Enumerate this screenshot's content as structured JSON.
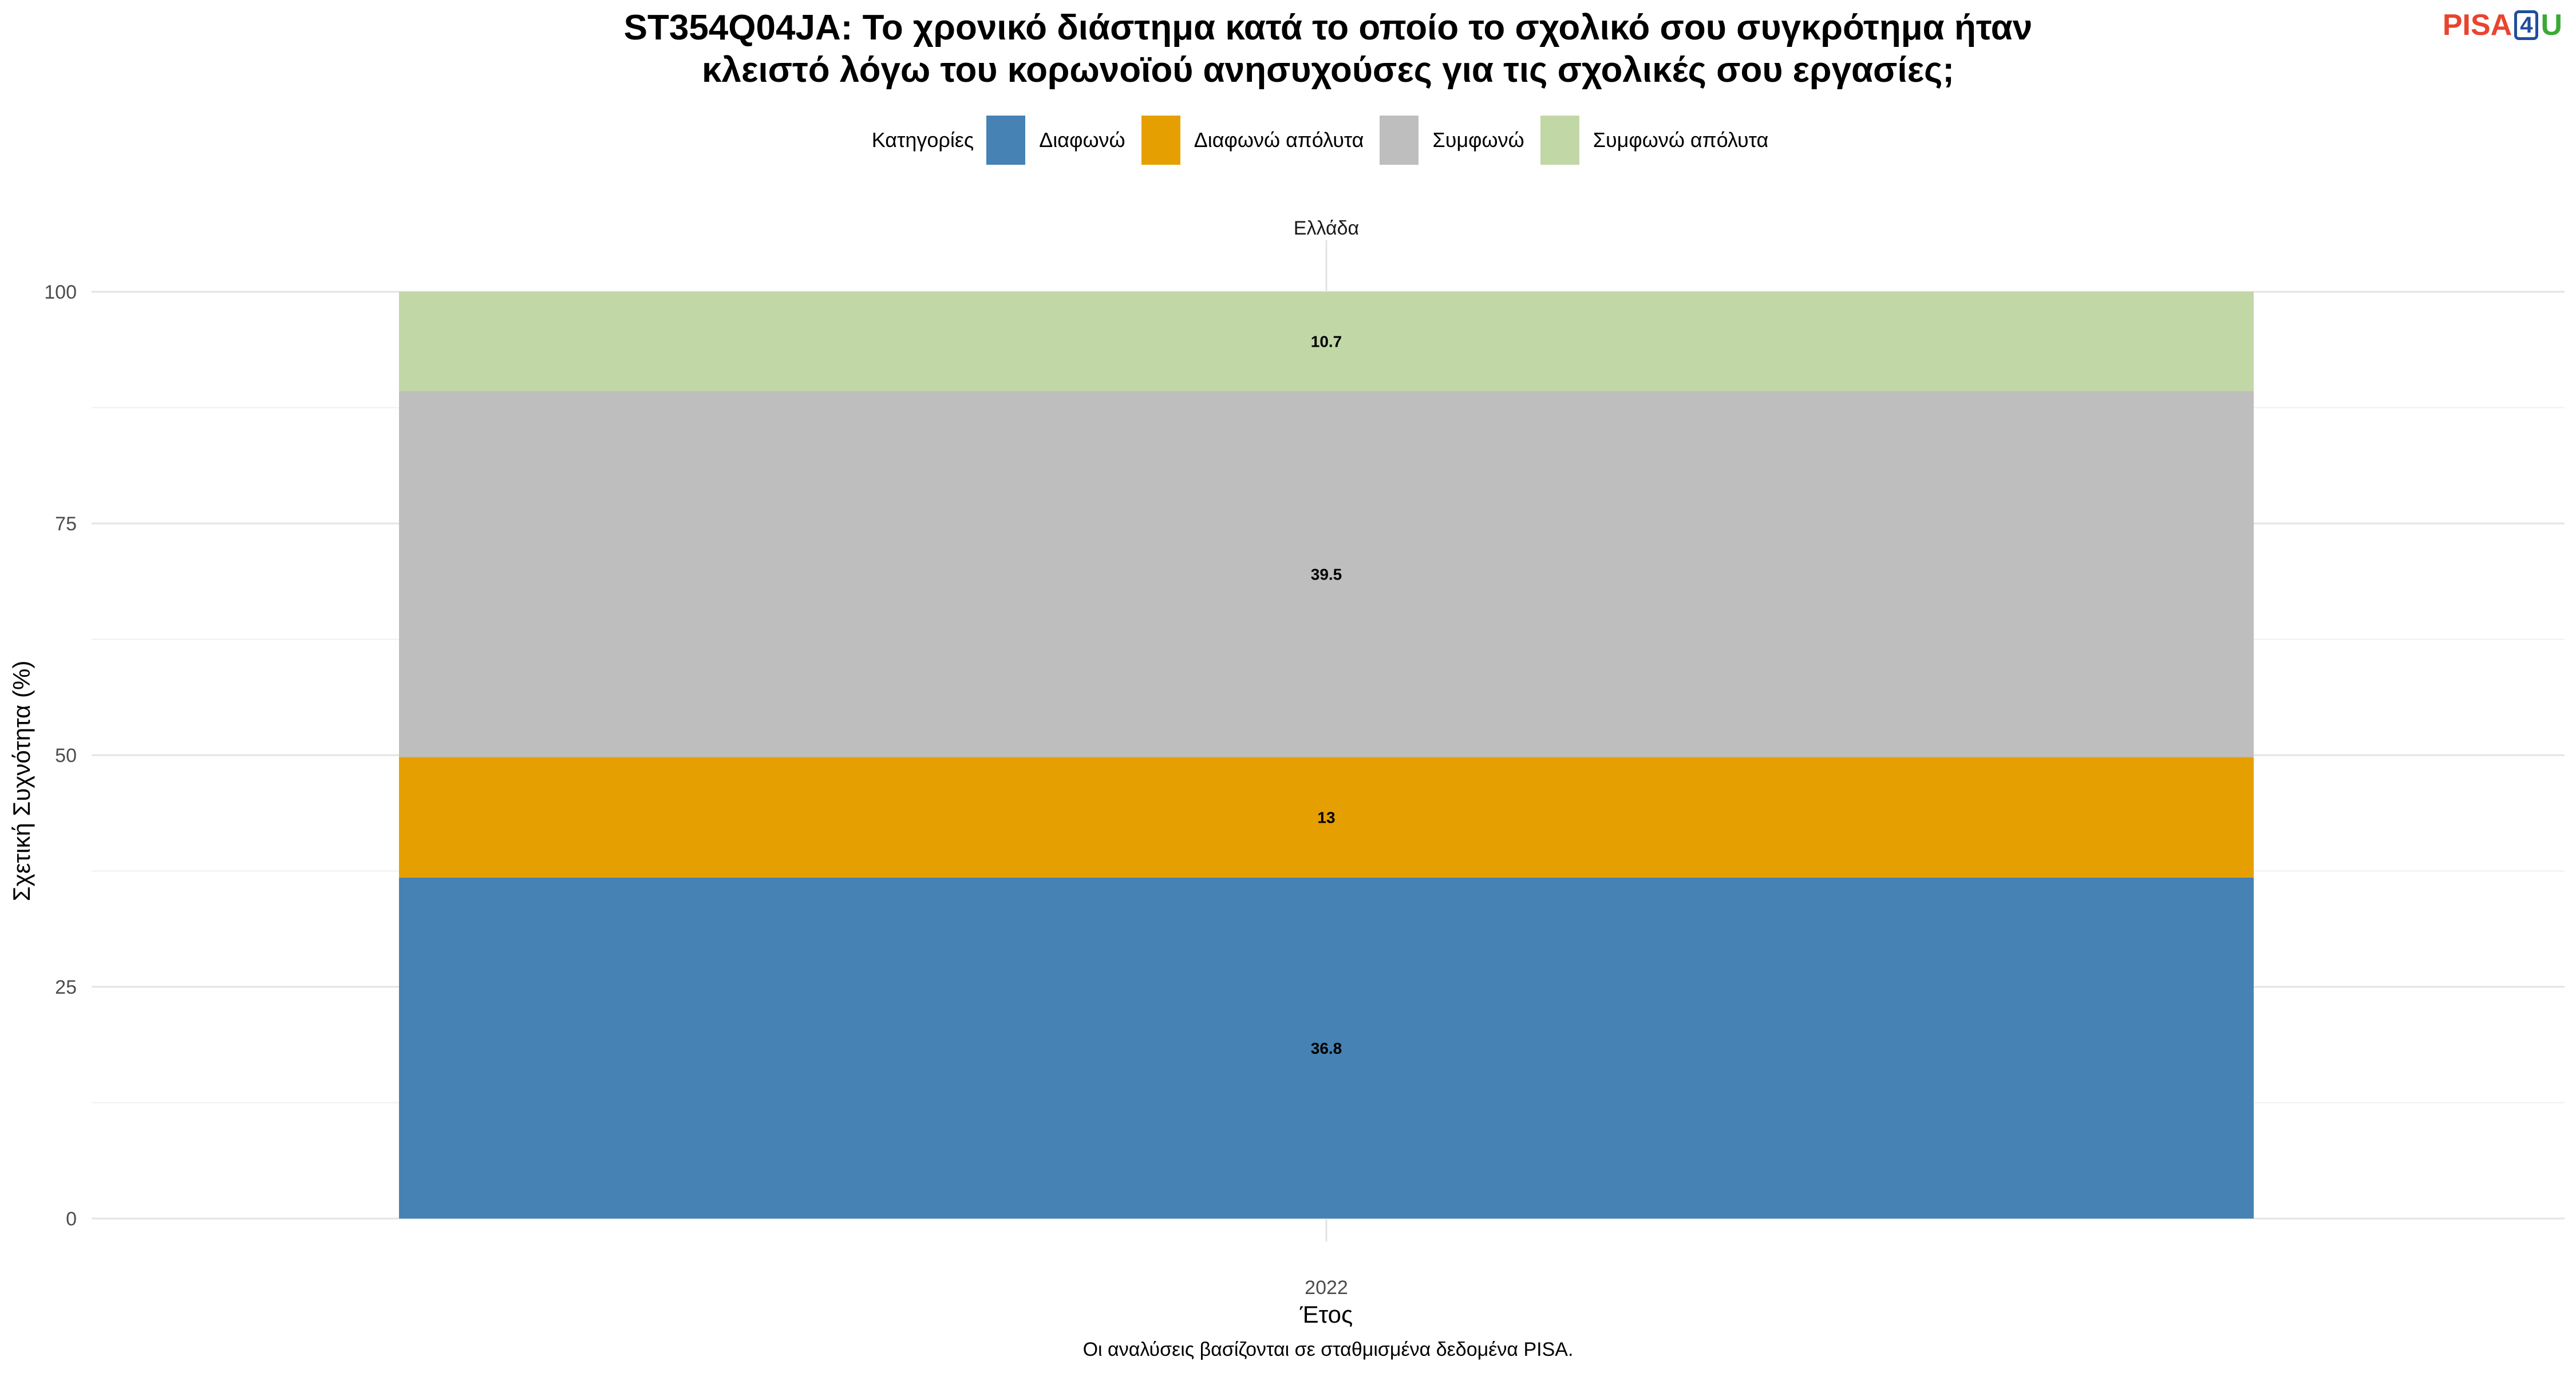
{
  "title_lines": [
    "ST354Q04JA: Το χρονικό διάστημα κατά το οποίο το σχολικό σου συγκρότημα ήταν",
    "κλειστό λόγω του κορωνοϊού ανησυχούσες για τις σχολικές σου εργασίες;"
  ],
  "logo": {
    "part1": "PISA",
    "part2": "4",
    "part3": "U"
  },
  "legend": {
    "title": "Κατηγορίες",
    "items": [
      {
        "label": "Διαφωνώ",
        "color": "#4682b4"
      },
      {
        "label": "Διαφωνώ απόλυτα",
        "color": "#e69f00"
      },
      {
        "label": "Συμφωνώ",
        "color": "#bebebe"
      },
      {
        "label": "Συμφωνώ απόλυτα",
        "color": "#c1d8a6"
      }
    ]
  },
  "caption": "Οι αναλύσεις βασίζονται σε σταθμισμένα δεδομένα PISA.",
  "chart_data": {
    "type": "bar",
    "stacked": true,
    "facet": "Ελλάδα",
    "categories": [
      "2022"
    ],
    "xlabel": "Έτος",
    "ylabel": "Σχετική Συχνότητα (%)",
    "ylim": [
      0,
      100
    ],
    "yticks": [
      0,
      25,
      50,
      75,
      100
    ],
    "grid": true,
    "legend_position": "top",
    "series": [
      {
        "name": "Διαφωνώ",
        "values": [
          36.8
        ],
        "label": "36.8",
        "color": "#4682b4"
      },
      {
        "name": "Διαφωνώ απόλυτα",
        "values": [
          13
        ],
        "label": "13",
        "color": "#e69f00"
      },
      {
        "name": "Συμφωνώ",
        "values": [
          39.5
        ],
        "label": "39.5",
        "color": "#bebebe"
      },
      {
        "name": "Συμφωνώ απόλυτα",
        "values": [
          10.7
        ],
        "label": "10.7",
        "color": "#c1d8a6"
      }
    ]
  }
}
